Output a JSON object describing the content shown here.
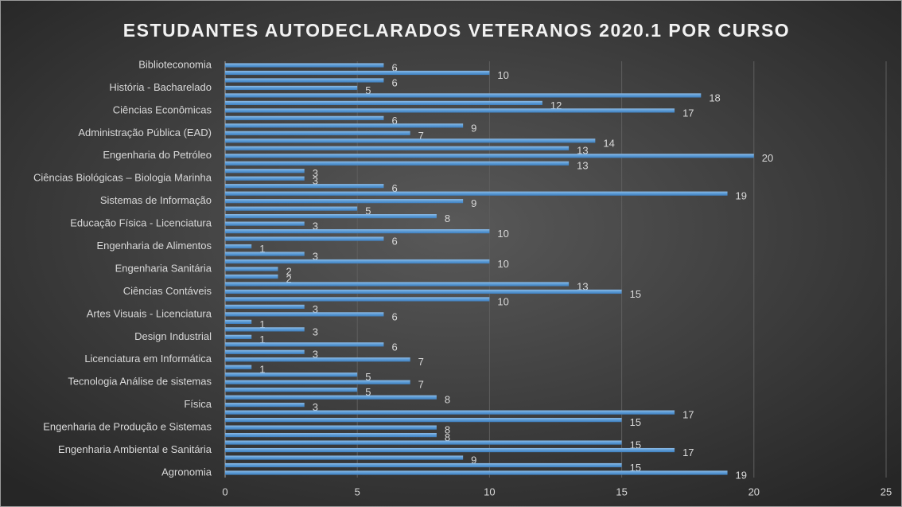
{
  "chart_data": {
    "type": "barh",
    "title": "ESTUDANTES AUTODECLARADOS VETERANOS 2020.1 POR CURSO",
    "categories": [
      "Biblioteconomia",
      null,
      null,
      "História - Bacharelado",
      null,
      null,
      "Ciências Econômicas",
      null,
      null,
      "Administração Pública (EAD)",
      null,
      null,
      "Engenharia do Petróleo",
      null,
      null,
      "Ciências Biológicas – Biologia Marinha",
      null,
      null,
      "Sistemas de Informação",
      null,
      null,
      "Educação Física - Licenciatura",
      null,
      null,
      "Engenharia de Alimentos",
      null,
      null,
      "Engenharia Sanitária",
      null,
      null,
      "Ciências Contáveis",
      null,
      null,
      "Artes Visuais - Licenciatura",
      null,
      null,
      "Design Industrial",
      null,
      null,
      "Licenciatura em Informática",
      null,
      null,
      "Tecnologia Análise de sistemas",
      null,
      null,
      "Física",
      null,
      null,
      "Engenharia de Produção e Sistemas",
      null,
      null,
      "Engenharia Ambiental e Sanitária",
      null,
      null,
      "Agronomia"
    ],
    "values": [
      6,
      10,
      6,
      5,
      18,
      12,
      17,
      6,
      9,
      7,
      14,
      13,
      20,
      13,
      3,
      3,
      6,
      19,
      9,
      5,
      8,
      3,
      10,
      6,
      1,
      3,
      10,
      2,
      2,
      13,
      15,
      10,
      3,
      6,
      1,
      3,
      1,
      6,
      3,
      7,
      1,
      5,
      7,
      5,
      8,
      3,
      17,
      15,
      8,
      8,
      15,
      17,
      9,
      15,
      19
    ],
    "color": "#5b9bd5",
    "xlim": [
      0,
      25
    ],
    "xticks": [
      0,
      5,
      10,
      15,
      20,
      25
    ],
    "grid": true
  }
}
